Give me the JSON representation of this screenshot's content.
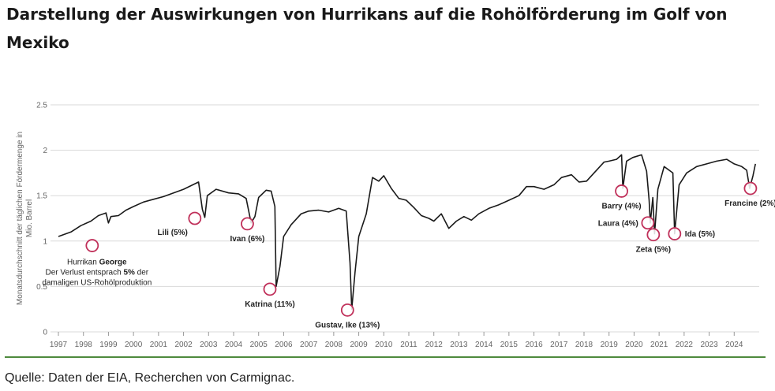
{
  "title": "Darstellung der Auswirkungen von Hurrikans auf die Rohölförderung im Golf von Mexiko",
  "source": "Quelle: Daten der EIA, Recherchen von Carmignac.",
  "colors": {
    "line": "#1a1a1a",
    "marker": "#c0305a",
    "grid": "#d9d9d9",
    "divider": "#4e8a3e"
  },
  "chart_data": {
    "type": "line",
    "title": "Darstellung der Auswirkungen von Hurrikans auf die Rohölförderung im Golf von Mexiko",
    "ylabel": "Monatsdurchschnitt der täglichen Fördermenge in Mio. Barrel",
    "ylabel_lines": [
      "Monatsdurchschnitt der täglichen Fördermenge in",
      "Mio. Barrel"
    ],
    "xlabel": "",
    "ylim": [
      0,
      2.5
    ],
    "xlim": [
      1997,
      2025
    ],
    "yticks": [
      0,
      0.5,
      1,
      1.5,
      2,
      2.5
    ],
    "ytick_labels": [
      "0",
      "0.5",
      "1",
      "1.5",
      "2",
      "2.5"
    ],
    "xticks": [
      1997,
      1998,
      1999,
      2000,
      2001,
      2002,
      2003,
      2004,
      2005,
      2006,
      2007,
      2008,
      2009,
      2010,
      2011,
      2012,
      2013,
      2014,
      2015,
      2016,
      2017,
      2018,
      2019,
      2020,
      2021,
      2022,
      2023,
      2024
    ],
    "xtick_labels": [
      "1997",
      "1998",
      "1999",
      "2000",
      "2001",
      "2002",
      "2003",
      "2004",
      "2005",
      "2006",
      "2007",
      "2008",
      "2009",
      "2010",
      "2011",
      "2012",
      "2013",
      "2014",
      "2015",
      "2016",
      "2017",
      "2018",
      "2019",
      "2020",
      "2021",
      "2022",
      "2023",
      "2024"
    ],
    "grid": true,
    "series": [
      {
        "name": "Rohölförderung Golf von Mexiko",
        "points": [
          [
            1997.0,
            1.05
          ],
          [
            1997.5,
            1.1
          ],
          [
            1997.9,
            1.17
          ],
          [
            1998.3,
            1.22
          ],
          [
            1998.6,
            1.28
          ],
          [
            1998.9,
            1.31
          ],
          [
            1999.0,
            1.2
          ],
          [
            1999.1,
            1.27
          ],
          [
            1999.4,
            1.28
          ],
          [
            1999.7,
            1.34
          ],
          [
            2000.0,
            1.38
          ],
          [
            2000.4,
            1.43
          ],
          [
            2000.8,
            1.46
          ],
          [
            2001.2,
            1.49
          ],
          [
            2001.6,
            1.53
          ],
          [
            2002.0,
            1.57
          ],
          [
            2002.3,
            1.61
          ],
          [
            2002.6,
            1.65
          ],
          [
            2002.75,
            1.35
          ],
          [
            2002.85,
            1.26
          ],
          [
            2002.95,
            1.5
          ],
          [
            2003.3,
            1.57
          ],
          [
            2003.8,
            1.53
          ],
          [
            2004.2,
            1.52
          ],
          [
            2004.5,
            1.47
          ],
          [
            2004.7,
            1.2
          ],
          [
            2004.85,
            1.27
          ],
          [
            2005.0,
            1.48
          ],
          [
            2005.3,
            1.56
          ],
          [
            2005.5,
            1.55
          ],
          [
            2005.65,
            1.38
          ],
          [
            2005.7,
            0.5
          ],
          [
            2005.85,
            0.72
          ],
          [
            2006.0,
            1.05
          ],
          [
            2006.3,
            1.18
          ],
          [
            2006.7,
            1.3
          ],
          [
            2007.0,
            1.33
          ],
          [
            2007.4,
            1.34
          ],
          [
            2007.8,
            1.32
          ],
          [
            2008.2,
            1.36
          ],
          [
            2008.5,
            1.33
          ],
          [
            2008.65,
            0.76
          ],
          [
            2008.72,
            0.25
          ],
          [
            2008.85,
            0.65
          ],
          [
            2009.0,
            1.05
          ],
          [
            2009.3,
            1.3
          ],
          [
            2009.55,
            1.7
          ],
          [
            2009.8,
            1.66
          ],
          [
            2010.0,
            1.72
          ],
          [
            2010.3,
            1.58
          ],
          [
            2010.6,
            1.47
          ],
          [
            2010.9,
            1.45
          ],
          [
            2011.2,
            1.37
          ],
          [
            2011.5,
            1.28
          ],
          [
            2011.8,
            1.25
          ],
          [
            2012.0,
            1.22
          ],
          [
            2012.3,
            1.3
          ],
          [
            2012.6,
            1.14
          ],
          [
            2012.9,
            1.22
          ],
          [
            2013.2,
            1.27
          ],
          [
            2013.5,
            1.23
          ],
          [
            2013.8,
            1.3
          ],
          [
            2014.2,
            1.36
          ],
          [
            2014.6,
            1.4
          ],
          [
            2015.0,
            1.45
          ],
          [
            2015.4,
            1.5
          ],
          [
            2015.7,
            1.6
          ],
          [
            2016.0,
            1.6
          ],
          [
            2016.4,
            1.57
          ],
          [
            2016.8,
            1.62
          ],
          [
            2017.1,
            1.7
          ],
          [
            2017.5,
            1.73
          ],
          [
            2017.8,
            1.65
          ],
          [
            2018.1,
            1.66
          ],
          [
            2018.5,
            1.78
          ],
          [
            2018.8,
            1.87
          ],
          [
            2019.0,
            1.88
          ],
          [
            2019.3,
            1.9
          ],
          [
            2019.5,
            1.95
          ],
          [
            2019.55,
            1.58
          ],
          [
            2019.7,
            1.88
          ],
          [
            2019.95,
            1.92
          ],
          [
            2020.3,
            1.95
          ],
          [
            2020.5,
            1.77
          ],
          [
            2020.6,
            1.45
          ],
          [
            2020.65,
            1.2
          ],
          [
            2020.75,
            1.48
          ],
          [
            2020.82,
            1.08
          ],
          [
            2020.95,
            1.57
          ],
          [
            2021.2,
            1.82
          ],
          [
            2021.4,
            1.78
          ],
          [
            2021.55,
            1.75
          ],
          [
            2021.62,
            1.08
          ],
          [
            2021.8,
            1.62
          ],
          [
            2022.1,
            1.75
          ],
          [
            2022.5,
            1.82
          ],
          [
            2022.9,
            1.85
          ],
          [
            2023.3,
            1.88
          ],
          [
            2023.7,
            1.9
          ],
          [
            2024.0,
            1.85
          ],
          [
            2024.3,
            1.82
          ],
          [
            2024.5,
            1.78
          ],
          [
            2024.62,
            1.58
          ],
          [
            2024.75,
            1.72
          ],
          [
            2024.85,
            1.85
          ]
        ]
      }
    ],
    "annotations": [
      {
        "x": 1998.35,
        "y": 0.95,
        "label_lines": [
          {
            "runs": [
              {
                "t": "Hurrikan ",
                "b": false
              },
              {
                "t": "George",
                "b": true
              }
            ]
          },
          {
            "runs": [
              {
                "t": "Der Verlust entsprach ",
                "b": false
              },
              {
                "t": "5%",
                "b": true
              },
              {
                "t": " der",
                "b": false
              }
            ]
          },
          {
            "runs": [
              {
                "t": "damaligen US-Rohölproduktion",
                "b": false
              }
            ]
          }
        ],
        "label_pos": "below"
      },
      {
        "x": 2002.45,
        "y": 1.25,
        "label": "Lili (5%)",
        "label_pos": "below-left"
      },
      {
        "x": 2004.55,
        "y": 1.19,
        "label": "Ivan (6%)",
        "label_pos": "below"
      },
      {
        "x": 2005.45,
        "y": 0.47,
        "label": "Katrina (11%)",
        "label_pos": "below"
      },
      {
        "x": 2008.55,
        "y": 0.24,
        "label": "Gustav, Ike (13%)",
        "label_pos": "below"
      },
      {
        "x": 2019.5,
        "y": 1.55,
        "label": "Barry (4%)",
        "label_pos": "below"
      },
      {
        "x": 2020.55,
        "y": 1.2,
        "label": "Laura (4%)",
        "label_pos": "left"
      },
      {
        "x": 2020.77,
        "y": 1.07,
        "label": "Zeta (5%)",
        "label_pos": "below"
      },
      {
        "x": 2021.62,
        "y": 1.08,
        "label": "Ida (5%)",
        "label_pos": "right"
      },
      {
        "x": 2024.65,
        "y": 1.58,
        "label": "Francine (2%)",
        "label_pos": "below"
      }
    ]
  }
}
